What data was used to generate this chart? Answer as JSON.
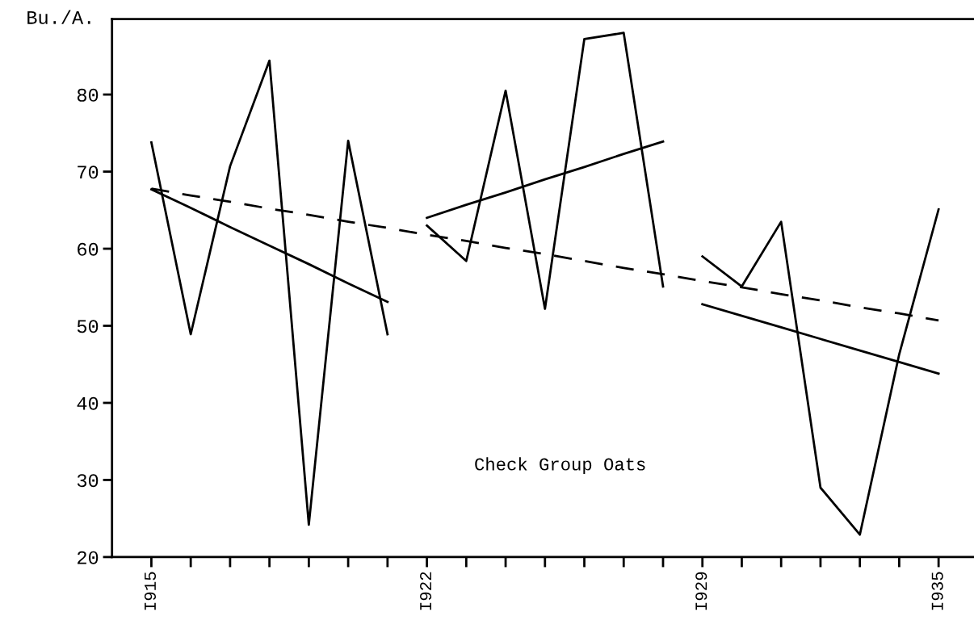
{
  "chart_data": {
    "type": "line",
    "ylabel": "Bu./A.",
    "annotations": [
      "Check Group Oats"
    ],
    "categories": [
      "I915",
      null,
      null,
      null,
      null,
      null,
      null,
      "I922",
      null,
      null,
      null,
      null,
      null,
      null,
      "I929",
      null,
      null,
      null,
      null,
      null,
      "I935"
    ],
    "ylim": [
      20,
      89.8
    ],
    "yticks": [
      20,
      30,
      40,
      50,
      60,
      70,
      80
    ],
    "grid": false,
    "series": [
      {
        "color": "#000000",
        "line_style": "solid",
        "values": [
          73.8,
          48.9,
          70.7,
          84.4,
          24.2,
          74.0,
          48.9,
          null,
          null,
          null,
          null,
          null,
          null,
          null,
          null,
          null,
          null,
          null,
          null,
          null,
          null
        ]
      },
      {
        "color": "#000000",
        "line_style": "solid",
        "values": [
          null,
          null,
          null,
          null,
          null,
          null,
          null,
          63.0,
          58.4,
          80.5,
          52.2,
          87.2,
          88.0,
          55.1,
          null,
          null,
          null,
          null,
          null,
          null,
          null
        ]
      },
      {
        "color": "#000000",
        "line_style": "solid",
        "values": [
          null,
          null,
          null,
          null,
          null,
          null,
          null,
          null,
          null,
          null,
          null,
          null,
          null,
          null,
          59.0,
          55.1,
          63.5,
          29.0,
          22.9,
          46.3,
          65.1
        ]
      },
      {
        "color": "#000000",
        "line_style": "solid",
        "values": [
          67.7,
          65.3,
          62.8,
          60.4,
          58.0,
          55.5,
          53.1,
          null,
          null,
          null,
          null,
          null,
          null,
          null,
          null,
          null,
          null,
          null,
          null,
          null,
          null
        ]
      },
      {
        "color": "#000000",
        "line_style": "solid",
        "values": [
          null,
          null,
          null,
          null,
          null,
          null,
          null,
          64.0,
          65.7,
          67.3,
          69.0,
          70.6,
          72.3,
          73.9,
          null,
          null,
          null,
          null,
          null,
          null,
          null
        ]
      },
      {
        "color": "#000000",
        "line_style": "solid",
        "values": [
          null,
          null,
          null,
          null,
          null,
          null,
          null,
          null,
          null,
          null,
          null,
          null,
          null,
          null,
          52.8,
          51.3,
          49.8,
          48.3,
          46.8,
          45.3,
          43.8
        ]
      },
      {
        "color": "#000000",
        "line_style": "dashed",
        "values": [
          67.8,
          66.9,
          66.1,
          65.2,
          64.4,
          63.5,
          62.7,
          61.8,
          61.0,
          60.1,
          59.3,
          58.4,
          57.5,
          56.7,
          55.8,
          55.0,
          54.1,
          53.3,
          52.4,
          51.6,
          50.7
        ]
      }
    ]
  }
}
